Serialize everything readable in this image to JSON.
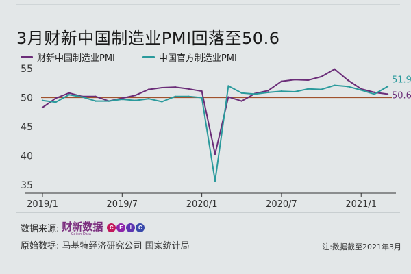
{
  "title": "3月财新中国制造业PMI回落至50.6",
  "legend": {
    "series_a": "财新中国制造业PMI",
    "series_b": "中国官方制造业PMI"
  },
  "colors": {
    "caixin": "#6b2d78",
    "official": "#2a9a9c",
    "reference": "#a0522d",
    "axis": "#333333"
  },
  "end_labels": {
    "caixin": "50.6",
    "official": "51.9"
  },
  "source": {
    "label": "数据来源:",
    "logo_text": "财新数据",
    "logo_subtext": "Caixin Data",
    "ceic_letters": [
      "C",
      "E",
      "I",
      "C"
    ],
    "ceic_colors": [
      "#c2185b",
      "#8e24aa",
      "#5e35b1",
      "#3949ab"
    ]
  },
  "original_data": "原始数据: 马基特经济研究公司 国家统计局",
  "note": "注:数据截至2021年3月",
  "watermark_text": "财新数据",
  "chart_data": {
    "type": "line",
    "x": [
      "2019/1",
      "2019/2",
      "2019/3",
      "2019/4",
      "2019/5",
      "2019/6",
      "2019/7",
      "2019/8",
      "2019/9",
      "2019/10",
      "2019/11",
      "2019/12",
      "2020/1",
      "2020/2",
      "2020/3",
      "2020/4",
      "2020/5",
      "2020/6",
      "2020/7",
      "2020/8",
      "2020/9",
      "2020/10",
      "2020/11",
      "2020/12",
      "2021/1",
      "2021/2",
      "2021/3"
    ],
    "series": [
      {
        "name": "财新中国制造业PMI",
        "values": [
          48.3,
          49.9,
          50.8,
          50.2,
          50.2,
          49.4,
          49.9,
          50.4,
          51.4,
          51.7,
          51.8,
          51.5,
          51.1,
          40.3,
          50.1,
          49.4,
          50.7,
          51.2,
          52.8,
          53.1,
          53.0,
          53.6,
          54.9,
          53.0,
          51.5,
          50.9,
          50.6
        ]
      },
      {
        "name": "中国官方制造业PMI",
        "values": [
          49.5,
          49.2,
          50.5,
          50.1,
          49.4,
          49.4,
          49.7,
          49.5,
          49.8,
          49.3,
          50.2,
          50.2,
          50.0,
          35.7,
          52.0,
          50.8,
          50.6,
          50.9,
          51.1,
          51.0,
          51.5,
          51.4,
          52.1,
          51.9,
          51.3,
          50.6,
          51.9
        ]
      }
    ],
    "reference_line": 50,
    "xticks": [
      "2019/1",
      "2019/7",
      "2020/1",
      "2020/7",
      "2021/1"
    ],
    "yticks": [
      "35",
      "40",
      "45",
      "50",
      "55"
    ],
    "ylim": [
      35,
      55
    ]
  }
}
